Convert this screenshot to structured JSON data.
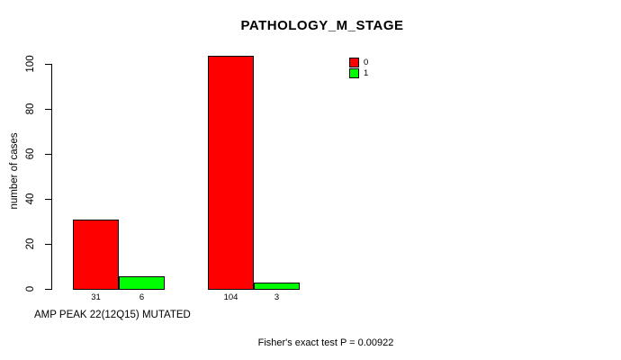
{
  "chart_data": {
    "type": "bar",
    "title": "PATHOLOGY_M_STAGE",
    "ylabel": "number of cases",
    "xlabel": "AMP PEAK 22(12Q15) MUTATED",
    "annotation": "Fisher's exact test P = 0.00922",
    "ylim": [
      0,
      100
    ],
    "yticks": [
      0,
      20,
      40,
      60,
      80,
      100
    ],
    "grid": false,
    "legend_position": "top-right",
    "series": [
      {
        "name": "0",
        "color": "#ff0000"
      },
      {
        "name": "1",
        "color": "#00ff00"
      }
    ],
    "groups": [
      {
        "bars": [
          {
            "series": "0",
            "value": 31,
            "label": "31"
          },
          {
            "series": "1",
            "value": 6,
            "label": "6"
          }
        ]
      },
      {
        "bars": [
          {
            "series": "0",
            "value": 104,
            "label": "104"
          },
          {
            "series": "1",
            "value": 3,
            "label": "3"
          }
        ]
      }
    ]
  }
}
